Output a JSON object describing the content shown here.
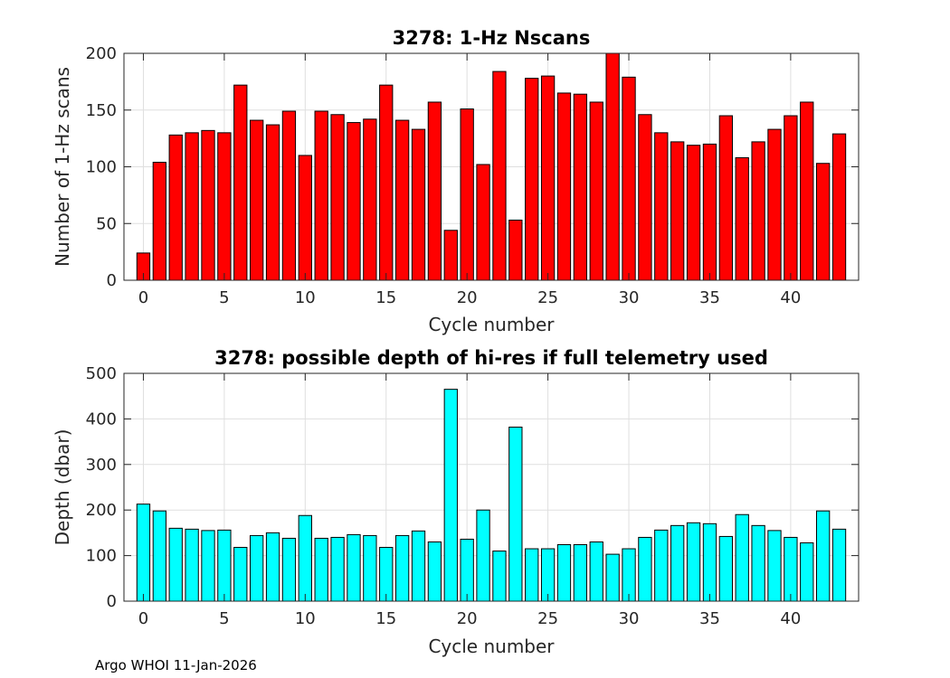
{
  "chart_data": [
    {
      "type": "bar",
      "title": "3278: 1-Hz Nscans",
      "xlabel": "Cycle number",
      "ylabel": "Number of 1-Hz scans",
      "x": [
        0,
        1,
        2,
        3,
        4,
        5,
        6,
        7,
        8,
        9,
        10,
        11,
        12,
        13,
        14,
        15,
        16,
        17,
        18,
        19,
        20,
        21,
        22,
        23,
        24,
        25,
        26,
        27,
        28,
        29,
        30,
        31,
        32,
        33,
        34,
        35,
        36,
        37,
        38,
        39,
        40,
        41,
        42,
        43
      ],
      "values": [
        24,
        104,
        128,
        130,
        132,
        130,
        172,
        141,
        137,
        149,
        110,
        149,
        146,
        139,
        142,
        172,
        141,
        133,
        157,
        44,
        151,
        102,
        184,
        53,
        178,
        180,
        165,
        164,
        157,
        200,
        179,
        146,
        130,
        122,
        119,
        120,
        145,
        108,
        122,
        133,
        145,
        157,
        103,
        129
      ],
      "xlim": [
        -1.2,
        44.2
      ],
      "ylim": [
        0,
        200
      ],
      "xticks": [
        0,
        5,
        10,
        15,
        20,
        25,
        30,
        35,
        40
      ],
      "yticks": [
        0,
        50,
        100,
        150,
        200
      ],
      "bar_color": "#ff0000",
      "grid": true
    },
    {
      "type": "bar",
      "title": "3278: possible depth of hi-res if full telemetry used",
      "xlabel": "Cycle number",
      "ylabel": "Depth (dbar)",
      "x": [
        0,
        1,
        2,
        3,
        4,
        5,
        6,
        7,
        8,
        9,
        10,
        11,
        12,
        13,
        14,
        15,
        16,
        17,
        18,
        19,
        20,
        21,
        22,
        23,
        24,
        25,
        26,
        27,
        28,
        29,
        30,
        31,
        32,
        33,
        34,
        35,
        36,
        37,
        38,
        39,
        40,
        41,
        42,
        43
      ],
      "values": [
        213,
        198,
        160,
        158,
        155,
        156,
        118,
        144,
        150,
        138,
        188,
        138,
        140,
        146,
        144,
        118,
        144,
        154,
        130,
        465,
        136,
        200,
        110,
        382,
        115,
        115,
        124,
        124,
        130,
        103,
        115,
        140,
        156,
        166,
        172,
        170,
        142,
        190,
        166,
        155,
        140,
        128,
        198,
        158
      ],
      "xlim": [
        -1.2,
        44.2
      ],
      "ylim": [
        0,
        500
      ],
      "xticks": [
        0,
        5,
        10,
        15,
        20,
        25,
        30,
        35,
        40
      ],
      "yticks": [
        0,
        100,
        200,
        300,
        400,
        500
      ],
      "bar_color": "#00ffff",
      "grid": true
    }
  ],
  "footer": "Argo WHOI 11-Jan-2026"
}
